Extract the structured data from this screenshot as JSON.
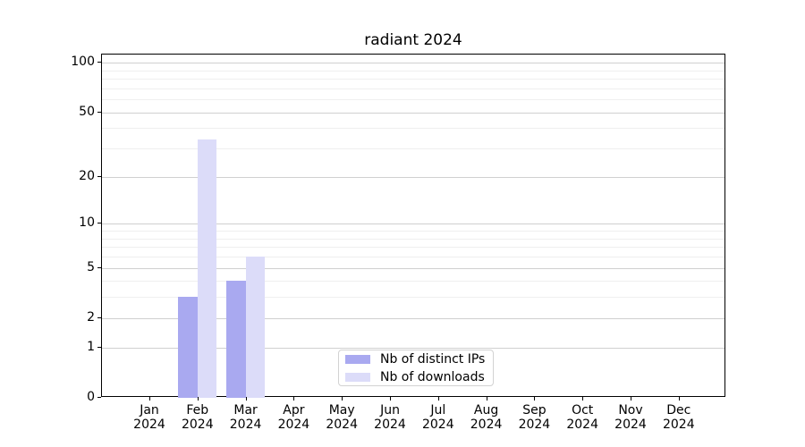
{
  "chart_data": {
    "type": "bar",
    "title": "radiant 2024",
    "scale": "log1p",
    "categories": [
      "Jan",
      "Feb",
      "Mar",
      "Apr",
      "May",
      "Jun",
      "Jul",
      "Aug",
      "Sep",
      "Oct",
      "Nov",
      "Dec"
    ],
    "year": "2024",
    "series": [
      {
        "name": "Nb of distinct IPs",
        "color": "#a9a9f0",
        "values": [
          0,
          3,
          4,
          0,
          0,
          0,
          0,
          0,
          0,
          0,
          0,
          0
        ]
      },
      {
        "name": "Nb of downloads",
        "color": "#dcdcf9",
        "values": [
          0,
          34,
          6,
          0,
          0,
          0,
          0,
          0,
          0,
          0,
          0,
          0
        ]
      }
    ],
    "y_ticks": [
      0,
      1,
      2,
      5,
      10,
      20,
      50,
      100
    ],
    "y_minor_gridlines": [
      3,
      4,
      6,
      7,
      8,
      9,
      30,
      40,
      60,
      70,
      80,
      90
    ],
    "ylim": [
      0,
      112
    ],
    "xlabel": "",
    "ylabel": "",
    "grid": true,
    "legend_position": "lower center"
  },
  "colors": {
    "axis": "#000000",
    "major_grid": "#d0d0d0",
    "minor_grid": "#efefef",
    "background": "#ffffff"
  }
}
